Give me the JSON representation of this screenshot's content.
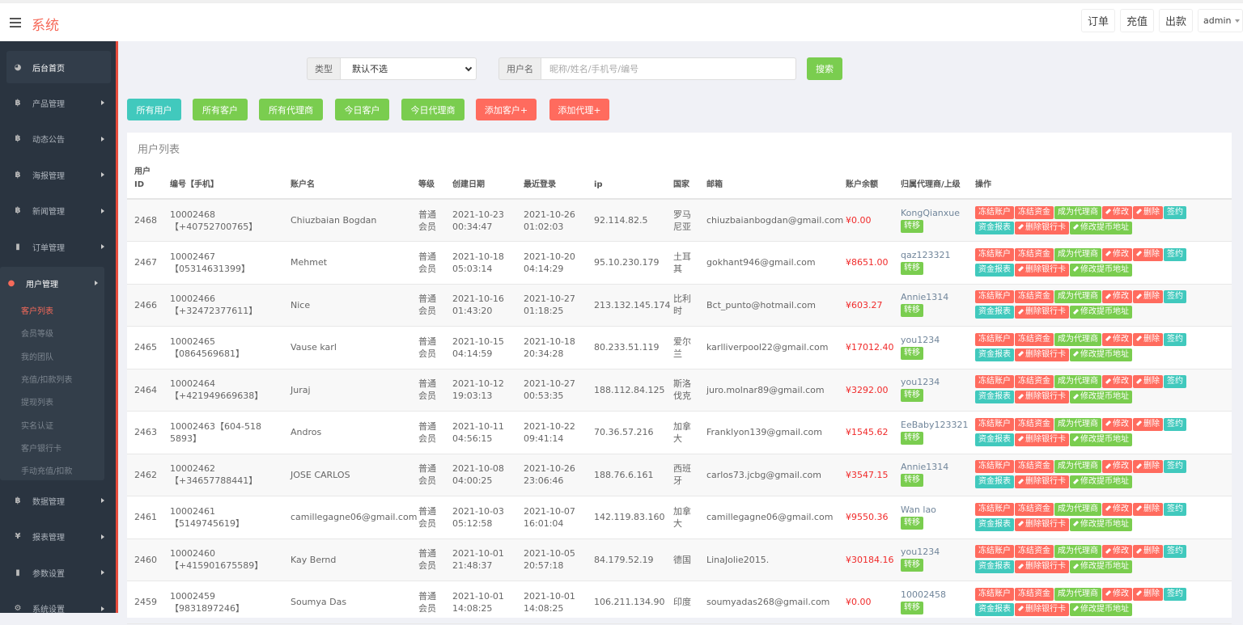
{
  "header": {
    "brand": "系统",
    "buttons": [
      "订单",
      "充值",
      "出款"
    ],
    "user": "admin"
  },
  "sidebar": {
    "home": "后台首页",
    "items": [
      {
        "label": "产品管理",
        "icon": "bitcoin-icon"
      },
      {
        "label": "动态公告",
        "icon": "bitcoin-icon"
      },
      {
        "label": "海报管理",
        "icon": "bitcoin-icon"
      },
      {
        "label": "新闻管理",
        "icon": "bitcoin-icon"
      },
      {
        "label": "订单管理",
        "icon": "file-icon"
      }
    ],
    "group": {
      "label": "用户管理",
      "sub": [
        "客户列表",
        "会员等级",
        "我的团队",
        "充值/扣款列表",
        "提现列表",
        "实名认证",
        "客户银行卡",
        "手动充值/扣款"
      ]
    },
    "after": [
      {
        "label": "数据管理",
        "icon": "bitcoin-icon"
      },
      {
        "label": "报表管理",
        "icon": "yen-icon"
      },
      {
        "label": "参数设置",
        "icon": "file-icon"
      },
      {
        "label": "系统设置",
        "icon": "gears-icon"
      }
    ]
  },
  "filter": {
    "type_label": "类型",
    "type_value": "默认不选",
    "user_label": "用户名",
    "user_placeholder": "昵称/姓名/手机号/编号",
    "search": "搜索"
  },
  "quick": [
    "所有用户",
    "所有客户",
    "所有代理商",
    "今日客户",
    "今日代理商",
    "添加客户+",
    "添加代理+"
  ],
  "colors": {
    "teal": "#41c9bd",
    "green": "#7acd4f",
    "red": "#ff6b5e",
    "brand": "#f66a5a"
  },
  "table": {
    "title": "用户列表",
    "columns": [
      "用户ID",
      "编号【手机】",
      "账户名",
      "等级",
      "创建日期",
      "最近登录",
      "ip",
      "国家",
      "邮箱",
      "账户余额",
      "归属代理商/上级",
      "操作"
    ],
    "transfer": "转移",
    "actions": [
      "冻结账户",
      "冻结资金",
      "成为代理商",
      "修改",
      "删除",
      "签约",
      "资金报表",
      "删除银行卡",
      "修改提币地址"
    ],
    "rows": [
      [
        "2468",
        "10002468【+40752700765】",
        "Chiuzbaian Bogdan",
        "普通会员",
        "2021-10-23 00:34:47",
        "2021-10-26 01:02:03",
        "92.114.82.5",
        "罗马尼亚",
        "chiuzbaianbogdan@gmail.com",
        "¥0.00",
        "KongQianxue"
      ],
      [
        "2467",
        "10002467【05314631399】",
        "Mehmet",
        "普通会员",
        "2021-10-18 05:03:14",
        "2021-10-20 04:14:29",
        "95.10.230.179",
        "土耳其",
        "gokhant946@gmail.com",
        "¥8651.00",
        "qaz123321"
      ],
      [
        "2466",
        "10002466【+32472377611】",
        "Nice",
        "普通会员",
        "2021-10-16 01:43:20",
        "2021-10-27 01:18:25",
        "213.132.145.174",
        "比利时",
        "Bct_punto@hotmail.com",
        "¥603.27",
        "Annie1314"
      ],
      [
        "2465",
        "10002465【0864569681】",
        "Vause karl",
        "普通会员",
        "2021-10-15 04:14:59",
        "2021-10-18 20:34:28",
        "80.233.51.119",
        "爱尔兰",
        "karlliverpool22@gmail.com",
        "¥17012.40",
        "you1234"
      ],
      [
        "2464",
        "10002464【+421949669638】",
        "Juraj",
        "普通会员",
        "2021-10-12 19:03:13",
        "2021-10-27 00:53:35",
        "188.112.84.125",
        "斯洛伐克",
        "juro.molnar89@gmail.com",
        "¥3292.00",
        "you1234"
      ],
      [
        "2463",
        "10002463【604-518 5893】",
        "Andros",
        "普通会员",
        "2021-10-11 04:56:15",
        "2021-10-22 09:41:14",
        "70.36.57.216",
        "加拿大",
        "Franklyon139@gmail.com",
        "¥1545.62",
        "EeBaby123321"
      ],
      [
        "2462",
        "10002462【+34657788441】",
        "JOSE CARLOS",
        "普通会员",
        "2021-10-08 04:00:25",
        "2021-10-26 23:06:46",
        "188.76.6.161",
        "西班牙",
        "carlos73.jcbg@gmail.com",
        "¥3547.15",
        "Annie1314"
      ],
      [
        "2461",
        "10002461【5149745619】",
        "camillegagne06@gmail.com",
        "普通会员",
        "2021-10-03 05:12:58",
        "2021-10-07 16:01:04",
        "142.119.83.160",
        "加拿大",
        "camillegagne06@gmail.com",
        "¥9550.36",
        "Wan lao"
      ],
      [
        "2460",
        "10002460【+415901675589】",
        "Kay Bernd",
        "普通会员",
        "2021-10-01 21:48:37",
        "2021-10-05 20:57:18",
        "84.179.52.19",
        "德国",
        "LinaJolie2015.",
        "¥30184.16",
        "you1234"
      ],
      [
        "2459",
        "10002459【9831897246】",
        "Soumya Das",
        "普通会员",
        "2021-10-01 14:08:25",
        "2021-10-01 14:08:25",
        "106.211.134.90",
        "印度",
        "soumyadas268@gmail.com",
        "¥0.00",
        "10002458"
      ]
    ]
  }
}
